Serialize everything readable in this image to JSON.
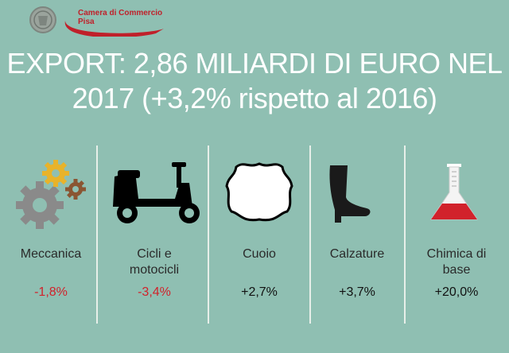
{
  "brand": {
    "line1": "Camera di Commercio",
    "line2": "Pisa"
  },
  "title": {
    "line1": "EXPORT: 2,86 MILIARDI DI EURO NEL",
    "line2": "2017 (+3,2% rispetto al 2016)"
  },
  "sectors": [
    {
      "label_line1": "Meccanica",
      "label_line2": "",
      "value": "-1,8%",
      "icon": "gears-icon",
      "trend": "negative"
    },
    {
      "label_line1": "Cicli e",
      "label_line2": "motocicli",
      "value": "-3,4%",
      "icon": "scooter-icon",
      "trend": "negative"
    },
    {
      "label_line1": "Cuoio",
      "label_line2": "",
      "value": "+2,7%",
      "icon": "leather-hide-icon",
      "trend": "positive"
    },
    {
      "label_line1": "Calzature",
      "label_line2": "",
      "value": "+3,7%",
      "icon": "boot-icon",
      "trend": "positive"
    },
    {
      "label_line1": "Chimica di",
      "label_line2": "base",
      "value": "+20,0%",
      "icon": "flask-icon",
      "trend": "positive"
    }
  ],
  "colors": {
    "background": "#8fbfb2",
    "negative": "#d1222b",
    "positive": "#111111",
    "brand_red": "#c0202a"
  }
}
